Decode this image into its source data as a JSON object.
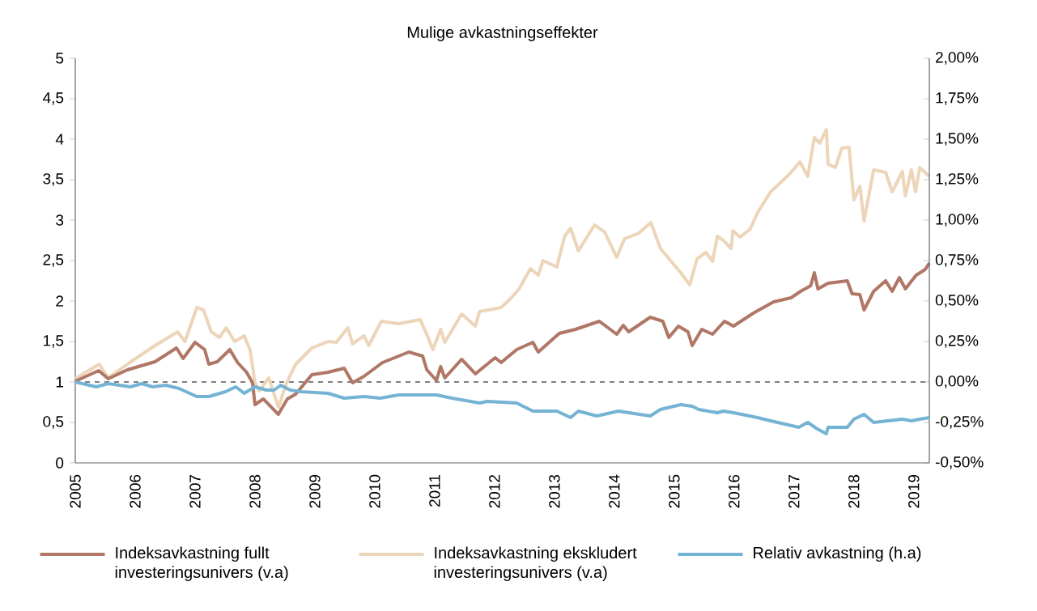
{
  "chart_data": {
    "type": "line",
    "title": "Mulige avkastningseffekter",
    "xlim": [
      2005,
      2019.26
    ],
    "xticks": [
      2005,
      2006,
      2007,
      2008,
      2009,
      2010,
      2011,
      2012,
      2013,
      2014,
      2015,
      2016,
      2017,
      2018,
      2019
    ],
    "ylim": [
      0,
      5
    ],
    "yticks": [
      0,
      {
        "value": 0.5,
        "label": "0,5"
      },
      1,
      {
        "value": 1.5,
        "label": "1,5"
      },
      2,
      {
        "value": 2.5,
        "label": "2,5"
      },
      3,
      {
        "value": 3.5,
        "label": "3,5"
      },
      4,
      {
        "value": 4.5,
        "label": "4,5"
      },
      5
    ],
    "y2lim": [
      -0.5,
      2.0
    ],
    "y2ticks": [
      {
        "value": -0.5,
        "label": "-0,50%"
      },
      {
        "value": -0.25,
        "label": "-0,25%"
      },
      {
        "value": 0,
        "label": "0,00%"
      },
      {
        "value": 0.25,
        "label": "0,25%"
      },
      {
        "value": 0.5,
        "label": "0,50%"
      },
      {
        "value": 0.75,
        "label": "0,75%"
      },
      {
        "value": 1.0,
        "label": "1,00%"
      },
      {
        "value": 1.25,
        "label": "1,25%"
      },
      {
        "value": 1.5,
        "label": "1,50%"
      },
      {
        "value": 1.75,
        "label": "1,75%"
      },
      {
        "value": 2.0,
        "label": "2,00%"
      }
    ],
    "ref_lines": [
      {
        "axis": "y",
        "value": 1,
        "color": "#000000",
        "line_style": "dashed"
      }
    ],
    "legend": "bottom",
    "marker": "none",
    "line_style": "solid",
    "series": [
      {
        "name": "Indeksavkastning fullt investeringsunivers (v.a)",
        "color": "#b07766",
        "x": [
          2005.0,
          2005.39,
          2005.55,
          2005.87,
          2006.33,
          2006.69,
          2006.8,
          2007.0,
          2007.16,
          2007.23,
          2007.37,
          2007.58,
          2007.71,
          2007.86,
          2007.96,
          2008.0,
          2008.14,
          2008.27,
          2008.39,
          2008.54,
          2008.68,
          2008.95,
          2009.22,
          2009.49,
          2009.63,
          2009.82,
          2010.13,
          2010.57,
          2010.8,
          2010.87,
          2011.03,
          2011.1,
          2011.17,
          2011.45,
          2011.68,
          2012.01,
          2012.11,
          2012.37,
          2012.64,
          2012.73,
          2013.08,
          2013.35,
          2013.75,
          2014.04,
          2014.15,
          2014.24,
          2014.6,
          2014.81,
          2014.91,
          2015.07,
          2015.23,
          2015.3,
          2015.46,
          2015.64,
          2015.84,
          2015.99,
          2016.32,
          2016.66,
          2016.95,
          2017.11,
          2017.28,
          2017.34,
          2017.4,
          2017.57,
          2017.89,
          2017.97,
          2018.1,
          2018.17,
          2018.33,
          2018.53,
          2018.64,
          2018.76,
          2018.86,
          2019.04,
          2019.19,
          2019.26
        ],
        "values": [
          1.01,
          1.14,
          1.04,
          1.15,
          1.25,
          1.42,
          1.29,
          1.49,
          1.4,
          1.22,
          1.25,
          1.4,
          1.24,
          1.12,
          0.99,
          0.72,
          0.79,
          0.69,
          0.6,
          0.79,
          0.85,
          1.09,
          1.12,
          1.17,
          0.99,
          1.07,
          1.24,
          1.37,
          1.32,
          1.15,
          1.02,
          1.19,
          1.05,
          1.28,
          1.1,
          1.3,
          1.24,
          1.4,
          1.49,
          1.37,
          1.6,
          1.65,
          1.75,
          1.59,
          1.7,
          1.62,
          1.8,
          1.75,
          1.55,
          1.69,
          1.62,
          1.45,
          1.65,
          1.59,
          1.75,
          1.69,
          1.85,
          1.99,
          2.04,
          2.12,
          2.19,
          2.35,
          2.15,
          2.22,
          2.25,
          2.09,
          2.08,
          1.89,
          2.12,
          2.25,
          2.12,
          2.29,
          2.15,
          2.32,
          2.39,
          2.47
        ]
      },
      {
        "name": "Indeksavkastning ekskludert investeringsunivers (v.a)",
        "color": "#ecd5b8",
        "x": [
          2005.0,
          2005.4,
          2005.55,
          2005.97,
          2006.31,
          2006.71,
          2006.83,
          2007.03,
          2007.14,
          2007.27,
          2007.41,
          2007.52,
          2007.66,
          2007.82,
          2007.92,
          2008.0,
          2008.07,
          2008.23,
          2008.39,
          2008.53,
          2008.68,
          2008.95,
          2009.22,
          2009.36,
          2009.55,
          2009.63,
          2009.82,
          2009.9,
          2010.11,
          2010.4,
          2010.76,
          2010.89,
          2010.97,
          2011.1,
          2011.17,
          2011.45,
          2011.68,
          2011.75,
          2012.11,
          2012.28,
          2012.41,
          2012.6,
          2012.73,
          2012.81,
          2013.04,
          2013.17,
          2013.27,
          2013.4,
          2013.67,
          2013.84,
          2014.04,
          2014.17,
          2014.41,
          2014.61,
          2014.77,
          2014.95,
          2015.11,
          2015.26,
          2015.38,
          2015.53,
          2015.64,
          2015.72,
          2015.82,
          2015.95,
          2015.98,
          2016.1,
          2016.27,
          2016.39,
          2016.61,
          2016.9,
          2017.1,
          2017.23,
          2017.34,
          2017.43,
          2017.54,
          2017.57,
          2017.69,
          2017.8,
          2017.92,
          2018.0,
          2018.1,
          2018.17,
          2018.33,
          2018.53,
          2018.64,
          2018.81,
          2018.86,
          2018.96,
          2019.03,
          2019.1,
          2019.26
        ],
        "values": [
          1.04,
          1.22,
          1.05,
          1.27,
          1.44,
          1.62,
          1.5,
          1.92,
          1.89,
          1.62,
          1.55,
          1.67,
          1.5,
          1.57,
          1.39,
          0.99,
          0.89,
          1.05,
          0.69,
          0.99,
          1.22,
          1.42,
          1.5,
          1.49,
          1.67,
          1.47,
          1.57,
          1.45,
          1.75,
          1.72,
          1.77,
          1.55,
          1.4,
          1.65,
          1.49,
          1.84,
          1.69,
          1.87,
          1.92,
          2.04,
          2.15,
          2.4,
          2.32,
          2.5,
          2.42,
          2.8,
          2.9,
          2.62,
          2.94,
          2.85,
          2.54,
          2.77,
          2.84,
          2.97,
          2.65,
          2.49,
          2.35,
          2.2,
          2.52,
          2.6,
          2.49,
          2.8,
          2.75,
          2.65,
          2.87,
          2.79,
          2.89,
          3.09,
          3.35,
          3.55,
          3.72,
          3.54,
          4.02,
          3.95,
          4.12,
          3.69,
          3.65,
          3.89,
          3.9,
          3.25,
          3.42,
          2.99,
          3.62,
          3.59,
          3.35,
          3.6,
          3.3,
          3.62,
          3.35,
          3.65,
          3.54
        ]
      },
      {
        "name": "Relativ avkastning (h.a)",
        "color": "#74b3d3",
        "axis": "y2",
        "x": [
          2005.0,
          2005.35,
          2005.55,
          2005.92,
          2006.11,
          2006.29,
          2006.51,
          2006.73,
          2007.03,
          2007.23,
          2007.51,
          2007.68,
          2007.82,
          2008.0,
          2008.19,
          2008.32,
          2008.43,
          2008.59,
          2008.77,
          2009.22,
          2009.49,
          2009.82,
          2010.09,
          2010.4,
          2010.76,
          2011.03,
          2011.29,
          2011.75,
          2011.88,
          2012.37,
          2012.64,
          2013.04,
          2013.27,
          2013.4,
          2013.71,
          2014.07,
          2014.24,
          2014.6,
          2014.77,
          2015.11,
          2015.3,
          2015.41,
          2015.72,
          2015.82,
          2015.99,
          2016.39,
          2016.61,
          2017.08,
          2017.23,
          2017.39,
          2017.54,
          2017.57,
          2017.89,
          2018.0,
          2018.17,
          2018.33,
          2018.57,
          2018.81,
          2018.96,
          2019.1,
          2019.26
        ],
        "values": [
          0.0,
          -0.03,
          -0.01,
          -0.03,
          -0.01,
          -0.03,
          -0.02,
          -0.04,
          -0.09,
          -0.09,
          -0.06,
          -0.03,
          -0.07,
          -0.03,
          -0.05,
          -0.05,
          -0.02,
          -0.05,
          -0.06,
          -0.07,
          -0.1,
          -0.09,
          -0.1,
          -0.08,
          -0.08,
          -0.08,
          -0.1,
          -0.13,
          -0.12,
          -0.13,
          -0.18,
          -0.18,
          -0.22,
          -0.18,
          -0.21,
          -0.18,
          -0.19,
          -0.21,
          -0.17,
          -0.14,
          -0.15,
          -0.17,
          -0.19,
          -0.18,
          -0.19,
          -0.22,
          -0.24,
          -0.28,
          -0.25,
          -0.29,
          -0.32,
          -0.28,
          -0.28,
          -0.23,
          -0.2,
          -0.25,
          -0.24,
          -0.23,
          -0.24,
          -0.23,
          -0.22
        ]
      }
    ]
  }
}
